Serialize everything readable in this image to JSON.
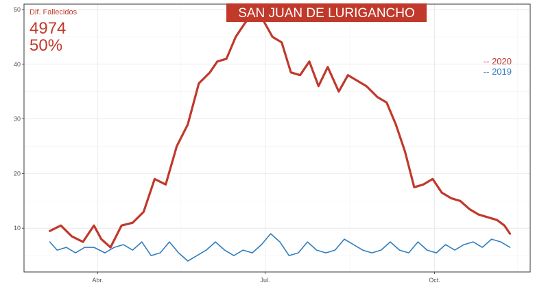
{
  "chart_data": {
    "type": "line",
    "title": "SAN JUAN DE LURIGANCHO",
    "annotation": {
      "label": "Dif. Fallecidos",
      "count": "4974",
      "percent": "50%"
    },
    "xlabel": "",
    "ylabel": "",
    "x_ticks": [
      "Abr.",
      "Jul.",
      "Oct."
    ],
    "y_ticks": [
      10,
      20,
      30,
      40,
      50
    ],
    "ylim": [
      2,
      51
    ],
    "grid": true,
    "legend_position": "right",
    "series": [
      {
        "name": "2020",
        "legend_label": "-- 2020",
        "color": "#c0392b",
        "x": [
          "2020-03-06",
          "2020-03-12",
          "2020-03-18",
          "2020-03-24",
          "2020-03-30",
          "2020-04-03",
          "2020-04-08",
          "2020-04-14",
          "2020-04-20",
          "2020-04-26",
          "2020-05-02",
          "2020-05-08",
          "2020-05-14",
          "2020-05-20",
          "2020-05-26",
          "2020-06-01",
          "2020-06-05",
          "2020-06-10",
          "2020-06-15",
          "2020-06-20",
          "2020-06-25",
          "2020-06-30",
          "2020-07-05",
          "2020-07-10",
          "2020-07-15",
          "2020-07-20",
          "2020-07-25",
          "2020-07-30",
          "2020-08-04",
          "2020-08-10",
          "2020-08-15",
          "2020-08-20",
          "2020-08-25",
          "2020-08-31",
          "2020-09-05",
          "2020-09-10",
          "2020-09-15",
          "2020-09-20",
          "2020-09-25",
          "2020-09-30",
          "2020-10-05",
          "2020-10-10",
          "2020-10-15",
          "2020-10-20",
          "2020-10-25",
          "2020-10-30",
          "2020-11-04",
          "2020-11-08",
          "2020-11-11"
        ],
        "values": [
          9.5,
          10.5,
          8.5,
          7.5,
          10.5,
          8,
          6.5,
          10.5,
          11,
          13,
          19,
          18,
          25,
          29,
          36.5,
          38.5,
          40.5,
          41,
          45,
          47.5,
          49.5,
          48,
          45,
          44,
          38.5,
          38,
          40.5,
          36,
          39.5,
          35,
          38,
          37,
          36,
          34,
          33,
          29,
          24,
          17.5,
          18,
          19,
          16.5,
          15.5,
          15,
          13.5,
          12.5,
          12,
          11.5,
          10.5,
          9
        ]
      },
      {
        "name": "2019",
        "legend_label": "-- 2019",
        "color": "#2e7dbf",
        "x": [
          "2020-03-06",
          "2020-03-10",
          "2020-03-15",
          "2020-03-20",
          "2020-03-25",
          "2020-03-30",
          "2020-04-05",
          "2020-04-10",
          "2020-04-15",
          "2020-04-20",
          "2020-04-25",
          "2020-04-30",
          "2020-05-05",
          "2020-05-10",
          "2020-05-15",
          "2020-05-20",
          "2020-05-25",
          "2020-05-30",
          "2020-06-04",
          "2020-06-09",
          "2020-06-14",
          "2020-06-19",
          "2020-06-24",
          "2020-06-29",
          "2020-07-04",
          "2020-07-09",
          "2020-07-14",
          "2020-07-19",
          "2020-07-24",
          "2020-07-29",
          "2020-08-03",
          "2020-08-08",
          "2020-08-13",
          "2020-08-18",
          "2020-08-23",
          "2020-08-28",
          "2020-09-02",
          "2020-09-07",
          "2020-09-12",
          "2020-09-17",
          "2020-09-22",
          "2020-09-27",
          "2020-10-02",
          "2020-10-07",
          "2020-10-12",
          "2020-10-17",
          "2020-10-22",
          "2020-10-27",
          "2020-11-01",
          "2020-11-06",
          "2020-11-11"
        ],
        "values": [
          7.5,
          6,
          6.5,
          5.5,
          6.5,
          6.5,
          5.5,
          6.5,
          7,
          6,
          7.5,
          5,
          5.5,
          7.5,
          5.5,
          4,
          5,
          6,
          7.5,
          6,
          5,
          6,
          5.5,
          7,
          9,
          7.5,
          5,
          5.5,
          7.5,
          6,
          5.5,
          6,
          8,
          7,
          6,
          5.5,
          6,
          7.5,
          6,
          5.5,
          7.5,
          6,
          5.5,
          7,
          6,
          7,
          7.5,
          6.5,
          8,
          7.5,
          6.5
        ]
      }
    ]
  }
}
